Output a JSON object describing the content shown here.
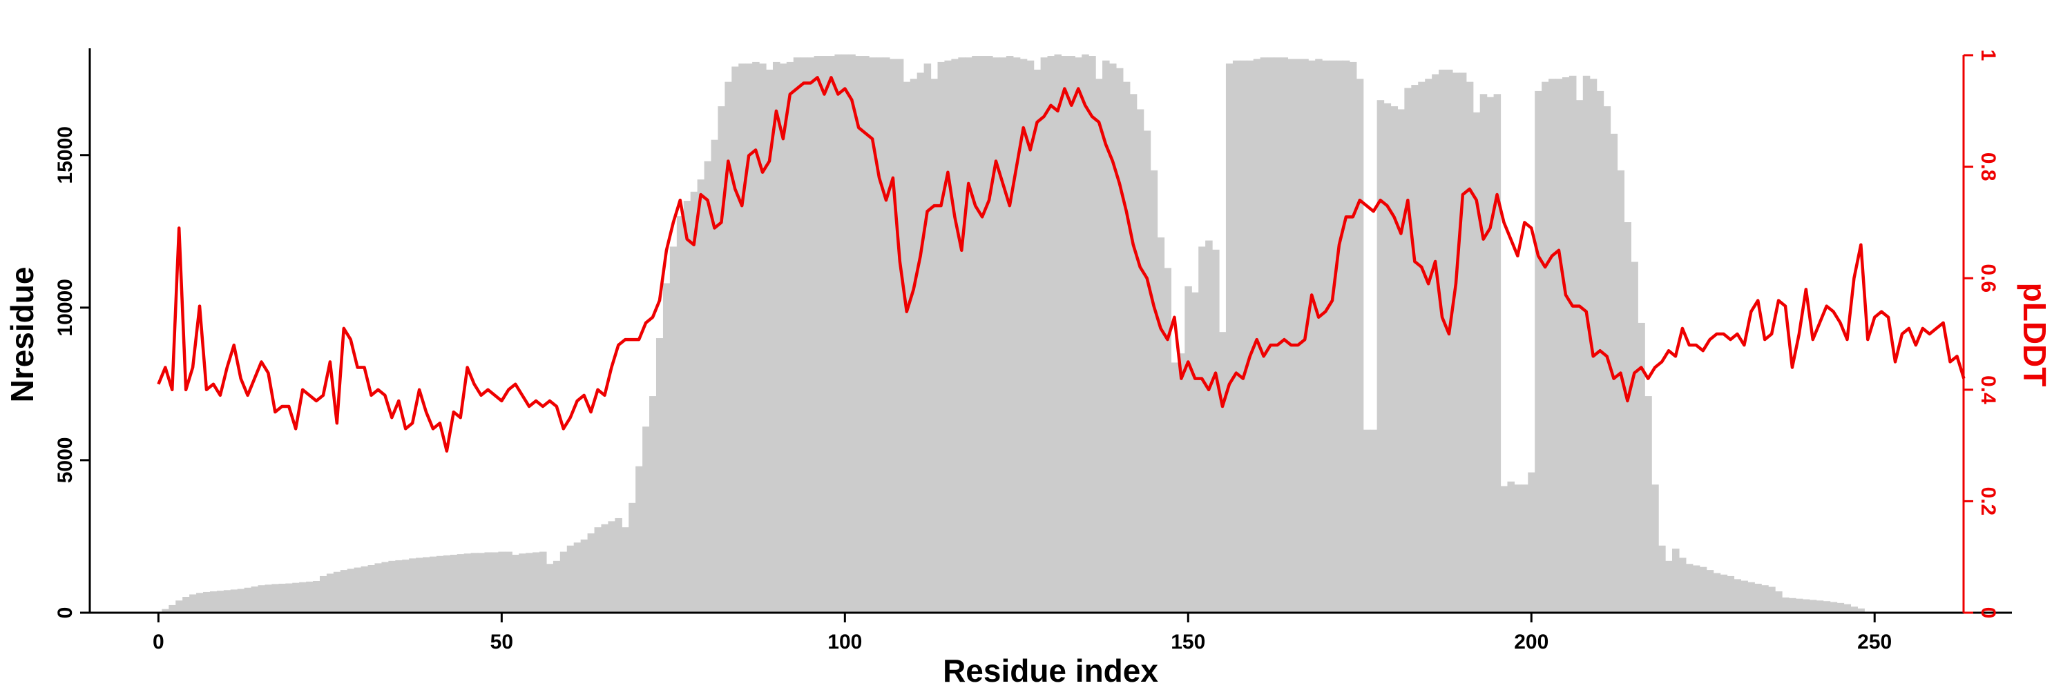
{
  "chart_data": {
    "type": "bar",
    "title": "",
    "xlabel": "Residue index",
    "ylabel": "Nresidue",
    "y2label": "pLDDT",
    "xlim": [
      -10,
      270
    ],
    "ylim": [
      0,
      18500
    ],
    "y2lim": [
      0,
      1
    ],
    "x_ticks": [
      0,
      50,
      100,
      150,
      200,
      250
    ],
    "y_ticks": [
      0,
      5000,
      10000,
      15000
    ],
    "y2_ticks": [
      0,
      0.2,
      0.4,
      0.6,
      0.8,
      1
    ],
    "grid": false,
    "legend": "none",
    "colors": {
      "bars": "#cccccc",
      "line": "#ee0000",
      "axis": "#000000"
    },
    "series": [
      {
        "type": "bar",
        "axis": "left",
        "x_start": 1,
        "values": [
          120,
          250,
          400,
          520,
          600,
          650,
          680,
          700,
          720,
          740,
          760,
          780,
          820,
          860,
          900,
          920,
          940,
          950,
          960,
          980,
          1000,
          1020,
          1040,
          1200,
          1280,
          1340,
          1400,
          1440,
          1480,
          1520,
          1560,
          1620,
          1660,
          1700,
          1720,
          1740,
          1780,
          1800,
          1820,
          1840,
          1860,
          1880,
          1900,
          1920,
          1940,
          1960,
          1960,
          1980,
          1980,
          2000,
          2000,
          1900,
          1940,
          1960,
          1980,
          2000,
          1600,
          1700,
          2000,
          2200,
          2300,
          2400,
          2600,
          2800,
          2900,
          3000,
          3100,
          2800,
          3600,
          4800,
          6100,
          7100,
          9000,
          10800,
          12000,
          13000,
          13500,
          13800,
          14200,
          14800,
          15500,
          16600,
          17400,
          17900,
          18000,
          18000,
          18050,
          18000,
          17800,
          18050,
          18000,
          18050,
          18200,
          18200,
          18200,
          18250,
          18250,
          18250,
          18300,
          18300,
          18300,
          18250,
          18250,
          18200,
          18200,
          18200,
          18150,
          18150,
          17400,
          17500,
          17700,
          18000,
          17500,
          18050,
          18100,
          18150,
          18200,
          18200,
          18250,
          18250,
          18250,
          18200,
          18200,
          18250,
          18200,
          18150,
          18100,
          17800,
          18200,
          18250,
          18300,
          18250,
          18250,
          18200,
          18300,
          18250,
          17500,
          18100,
          18000,
          17850,
          17400,
          17000,
          16500,
          15800,
          14500,
          12300,
          11300,
          8200,
          8500,
          10700,
          10500,
          12000,
          12200,
          11900,
          9200,
          18000,
          18100,
          18100,
          18100,
          18150,
          18200,
          18200,
          18200,
          18200,
          18150,
          18150,
          18150,
          18100,
          18150,
          18100,
          18100,
          18100,
          18100,
          18050,
          17500,
          6000,
          6000,
          16800,
          16700,
          16600,
          16500,
          17200,
          17300,
          17400,
          17500,
          17650,
          17800,
          17800,
          17700,
          17700,
          17400,
          16400,
          17000,
          16900,
          17000,
          4150,
          4300,
          4200,
          4200,
          4600,
          17100,
          17400,
          17500,
          17500,
          17550,
          17600,
          16800,
          17600,
          17500,
          17100,
          16600,
          15700,
          14500,
          12800,
          11500,
          9500,
          7100,
          4200,
          2200,
          1700,
          2100,
          1800,
          1600,
          1550,
          1500,
          1400,
          1300,
          1250,
          1200,
          1100,
          1050,
          1000,
          950,
          900,
          850,
          700,
          500,
          480,
          460,
          440,
          420,
          400,
          380,
          350,
          320,
          280,
          200,
          140
        ]
      },
      {
        "type": "line",
        "axis": "right",
        "x_start": 0,
        "values": [
          0.41,
          0.44,
          0.4,
          0.69,
          0.4,
          0.44,
          0.55,
          0.4,
          0.41,
          0.39,
          0.44,
          0.48,
          0.42,
          0.39,
          0.42,
          0.45,
          0.43,
          0.36,
          0.37,
          0.37,
          0.33,
          0.4,
          0.39,
          0.38,
          0.39,
          0.45,
          0.34,
          0.51,
          0.49,
          0.44,
          0.44,
          0.39,
          0.4,
          0.39,
          0.35,
          0.38,
          0.33,
          0.34,
          0.4,
          0.36,
          0.33,
          0.34,
          0.29,
          0.36,
          0.35,
          0.44,
          0.41,
          0.39,
          0.4,
          0.39,
          0.38,
          0.4,
          0.41,
          0.39,
          0.37,
          0.38,
          0.37,
          0.38,
          0.37,
          0.33,
          0.35,
          0.38,
          0.39,
          0.36,
          0.4,
          0.39,
          0.44,
          0.48,
          0.49,
          0.49,
          0.49,
          0.52,
          0.53,
          0.56,
          0.65,
          0.7,
          0.74,
          0.67,
          0.66,
          0.75,
          0.74,
          0.69,
          0.7,
          0.81,
          0.76,
          0.73,
          0.82,
          0.83,
          0.79,
          0.81,
          0.9,
          0.85,
          0.93,
          0.94,
          0.95,
          0.95,
          0.96,
          0.93,
          0.96,
          0.93,
          0.94,
          0.92,
          0.87,
          0.86,
          0.85,
          0.78,
          0.74,
          0.78,
          0.63,
          0.54,
          0.58,
          0.64,
          0.72,
          0.73,
          0.73,
          0.79,
          0.71,
          0.65,
          0.77,
          0.73,
          0.71,
          0.74,
          0.81,
          0.77,
          0.73,
          0.8,
          0.87,
          0.83,
          0.88,
          0.89,
          0.91,
          0.9,
          0.94,
          0.91,
          0.94,
          0.91,
          0.89,
          0.88,
          0.84,
          0.81,
          0.77,
          0.72,
          0.66,
          0.62,
          0.6,
          0.55,
          0.51,
          0.49,
          0.53,
          0.42,
          0.45,
          0.42,
          0.42,
          0.4,
          0.43,
          0.37,
          0.41,
          0.43,
          0.42,
          0.46,
          0.49,
          0.46,
          0.48,
          0.48,
          0.49,
          0.48,
          0.48,
          0.49,
          0.57,
          0.53,
          0.54,
          0.56,
          0.66,
          0.71,
          0.71,
          0.74,
          0.73,
          0.72,
          0.74,
          0.73,
          0.71,
          0.68,
          0.74,
          0.63,
          0.62,
          0.59,
          0.63,
          0.53,
          0.5,
          0.59,
          0.75,
          0.76,
          0.74,
          0.67,
          0.69,
          0.75,
          0.7,
          0.67,
          0.64,
          0.7,
          0.69,
          0.64,
          0.62,
          0.64,
          0.65,
          0.57,
          0.55,
          0.55,
          0.54,
          0.46,
          0.47,
          0.46,
          0.42,
          0.43,
          0.38,
          0.43,
          0.44,
          0.42,
          0.44,
          0.45,
          0.47,
          0.46,
          0.51,
          0.48,
          0.48,
          0.47,
          0.49,
          0.5,
          0.5,
          0.49,
          0.5,
          0.48,
          0.54,
          0.56,
          0.49,
          0.5,
          0.56,
          0.55,
          0.44,
          0.5,
          0.58,
          0.49,
          0.52,
          0.55,
          0.54,
          0.52,
          0.49,
          0.6,
          0.66,
          0.49,
          0.53,
          0.54,
          0.53,
          0.45,
          0.5,
          0.51,
          0.48,
          0.51,
          0.5,
          0.51,
          0.52,
          0.45,
          0.46,
          0.42
        ]
      }
    ]
  }
}
